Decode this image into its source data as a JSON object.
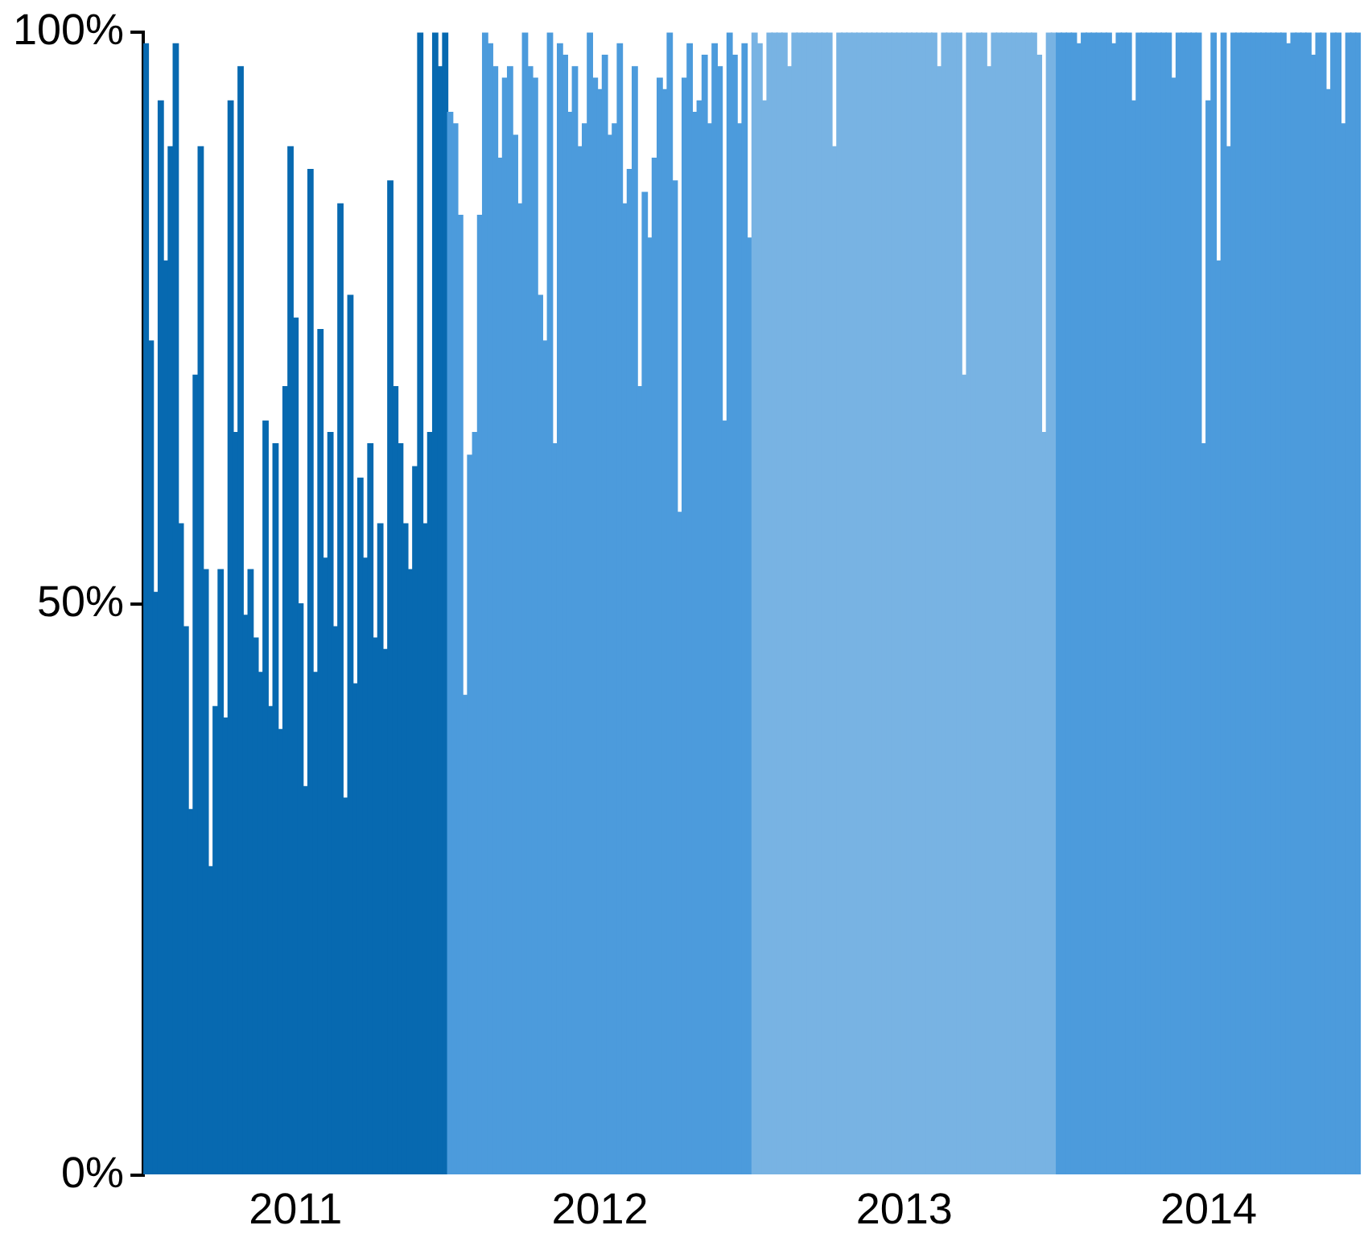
{
  "chart_data": {
    "type": "bar",
    "categories": [
      null,
      null,
      null,
      null,
      null,
      null,
      null,
      null,
      null,
      null,
      null,
      null,
      null,
      null,
      null,
      null,
      null,
      null,
      null,
      null,
      null,
      null,
      null,
      null,
      null,
      null,
      null,
      null,
      null,
      null,
      "2011",
      null,
      null,
      null,
      null,
      null,
      null,
      null,
      null,
      null,
      null,
      null,
      null,
      null,
      null,
      null,
      null,
      null,
      null,
      null,
      null,
      null,
      null,
      null,
      null,
      null,
      null,
      null,
      null,
      null,
      null,
      null,
      null,
      null,
      null,
      null,
      null,
      null,
      null,
      null,
      null,
      null,
      null,
      null,
      null,
      null,
      null,
      null,
      null,
      null,
      null,
      null,
      null,
      null,
      null,
      null,
      null,
      null,
      null,
      null,
      null,
      "2012",
      null,
      null,
      null,
      null,
      null,
      null,
      null,
      null,
      null,
      null,
      null,
      null,
      null,
      null,
      null,
      null,
      null,
      null,
      null,
      null,
      null,
      null,
      null,
      null,
      null,
      null,
      null,
      null,
      null,
      null,
      null,
      null,
      null,
      null,
      null,
      null,
      null,
      null,
      null,
      null,
      null,
      null,
      null,
      null,
      null,
      null,
      null,
      null,
      null,
      null,
      null,
      null,
      null,
      null,
      null,
      null,
      null,
      null,
      null,
      null,
      "2013",
      null,
      null,
      null,
      null,
      null,
      null,
      null,
      null,
      null,
      null,
      null,
      null,
      null,
      null,
      null,
      null,
      null,
      null,
      null,
      null,
      null,
      null,
      null,
      null,
      null,
      null,
      null,
      null,
      null,
      null,
      null,
      null,
      null,
      null,
      null,
      null,
      null,
      null,
      null,
      null,
      null,
      null,
      null,
      null,
      null,
      null,
      null,
      null,
      null,
      null,
      null,
      null,
      null,
      null,
      null,
      null,
      null,
      null,
      null,
      null,
      "2014",
      null,
      null,
      null,
      null,
      null,
      null,
      null,
      null,
      null,
      null,
      null,
      null,
      null,
      null,
      null,
      null,
      null,
      null,
      null,
      null,
      null,
      null,
      null,
      null,
      null,
      null,
      null,
      null,
      null,
      null
    ],
    "values": [
      99,
      73,
      51,
      94,
      80,
      90,
      99,
      57,
      48,
      32,
      70,
      90,
      53,
      27,
      41,
      53,
      40,
      94,
      65,
      97,
      49,
      53,
      47,
      44,
      66,
      41,
      64,
      39,
      69,
      90,
      75,
      50,
      34,
      88,
      44,
      74,
      54,
      65,
      48,
      85,
      33,
      77,
      43,
      61,
      54,
      64,
      47,
      57,
      46,
      87,
      69,
      64,
      57,
      53,
      62,
      100,
      57,
      65,
      100,
      97,
      100,
      93,
      92,
      84,
      42,
      63,
      65,
      84,
      100,
      99,
      97,
      89,
      96,
      97,
      91,
      85,
      100,
      97,
      96,
      77,
      73,
      100,
      64,
      99,
      98,
      93,
      97,
      90,
      92,
      100,
      96,
      95,
      98,
      91,
      92,
      99,
      85,
      88,
      97,
      69,
      86,
      82,
      89,
      96,
      95,
      100,
      87,
      58,
      96,
      99,
      93,
      94,
      98,
      92,
      99,
      97,
      66,
      100,
      98,
      92,
      99,
      82,
      100,
      99,
      94,
      100,
      100,
      100,
      100,
      97,
      100,
      100,
      100,
      100,
      100,
      100,
      100,
      100,
      90,
      100,
      100,
      100,
      100,
      100,
      100,
      100,
      100,
      100,
      100,
      100,
      100,
      100,
      100,
      100,
      100,
      100,
      100,
      100,
      100,
      97,
      100,
      100,
      100,
      100,
      70,
      100,
      100,
      100,
      100,
      97,
      100,
      100,
      100,
      100,
      100,
      100,
      100,
      100,
      100,
      98,
      65,
      100,
      100,
      100,
      100,
      100,
      100,
      99,
      100,
      100,
      100,
      100,
      100,
      100,
      99,
      100,
      100,
      100,
      94,
      100,
      100,
      100,
      100,
      100,
      100,
      100,
      96,
      100,
      100,
      100,
      100,
      100,
      64,
      94,
      100,
      80,
      100,
      90,
      100,
      100,
      100,
      100,
      100,
      100,
      100,
      100,
      100,
      100,
      100,
      99,
      100,
      100,
      100,
      100,
      98,
      100,
      100,
      95,
      100,
      100,
      92,
      100,
      100,
      100
    ],
    "colors": [
      "#0769b0",
      "#0769b0",
      "#0769b0",
      "#0769b0",
      "#0769b0",
      "#0769b0",
      "#0769b0",
      "#0769b0",
      "#0769b0",
      "#0769b0",
      "#0769b0",
      "#0769b0",
      "#0769b0",
      "#0769b0",
      "#0769b0",
      "#0769b0",
      "#0769b0",
      "#0769b0",
      "#0769b0",
      "#0769b0",
      "#0769b0",
      "#0769b0",
      "#0769b0",
      "#0769b0",
      "#0769b0",
      "#0769b0",
      "#0769b0",
      "#0769b0",
      "#0769b0",
      "#0769b0",
      "#0769b0",
      "#0769b0",
      "#0769b0",
      "#0769b0",
      "#0769b0",
      "#0769b0",
      "#0769b0",
      "#0769b0",
      "#0769b0",
      "#0769b0",
      "#0769b0",
      "#0769b0",
      "#0769b0",
      "#0769b0",
      "#0769b0",
      "#0769b0",
      "#0769b0",
      "#0769b0",
      "#0769b0",
      "#0769b0",
      "#0769b0",
      "#0769b0",
      "#0769b0",
      "#0769b0",
      "#0769b0",
      "#0769b0",
      "#0769b0",
      "#0769b0",
      "#0769b0",
      "#0769b0",
      "#0769b0",
      "#4c9bdc",
      "#4c9bdc",
      "#4c9bdc",
      "#4c9bdc",
      "#4c9bdc",
      "#4c9bdc",
      "#4c9bdc",
      "#4c9bdc",
      "#4c9bdc",
      "#4c9bdc",
      "#4c9bdc",
      "#4c9bdc",
      "#4c9bdc",
      "#4c9bdc",
      "#4c9bdc",
      "#4c9bdc",
      "#4c9bdc",
      "#4c9bdc",
      "#4c9bdc",
      "#4c9bdc",
      "#4c9bdc",
      "#4c9bdc",
      "#4c9bdc",
      "#4c9bdc",
      "#4c9bdc",
      "#4c9bdc",
      "#4c9bdc",
      "#4c9bdc",
      "#4c9bdc",
      "#4c9bdc",
      "#4c9bdc",
      "#4c9bdc",
      "#4c9bdc",
      "#4c9bdc",
      "#4c9bdc",
      "#4c9bdc",
      "#4c9bdc",
      "#4c9bdc",
      "#4c9bdc",
      "#4c9bdc",
      "#4c9bdc",
      "#4c9bdc",
      "#4c9bdc",
      "#4c9bdc",
      "#4c9bdc",
      "#4c9bdc",
      "#4c9bdc",
      "#4c9bdc",
      "#4c9bdc",
      "#4c9bdc",
      "#4c9bdc",
      "#4c9bdc",
      "#4c9bdc",
      "#4c9bdc",
      "#4c9bdc",
      "#4c9bdc",
      "#4c9bdc",
      "#4c9bdc",
      "#4c9bdc",
      "#4c9bdc",
      "#4c9bdc",
      "#78b3e3",
      "#78b3e3",
      "#78b3e3",
      "#78b3e3",
      "#78b3e3",
      "#78b3e3",
      "#78b3e3",
      "#78b3e3",
      "#78b3e3",
      "#78b3e3",
      "#78b3e3",
      "#78b3e3",
      "#78b3e3",
      "#78b3e3",
      "#78b3e3",
      "#78b3e3",
      "#78b3e3",
      "#78b3e3",
      "#78b3e3",
      "#78b3e3",
      "#78b3e3",
      "#78b3e3",
      "#78b3e3",
      "#78b3e3",
      "#78b3e3",
      "#78b3e3",
      "#78b3e3",
      "#78b3e3",
      "#78b3e3",
      "#78b3e3",
      "#78b3e3",
      "#78b3e3",
      "#78b3e3",
      "#78b3e3",
      "#78b3e3",
      "#78b3e3",
      "#78b3e3",
      "#78b3e3",
      "#78b3e3",
      "#78b3e3",
      "#78b3e3",
      "#78b3e3",
      "#78b3e3",
      "#78b3e3",
      "#78b3e3",
      "#78b3e3",
      "#78b3e3",
      "#78b3e3",
      "#78b3e3",
      "#78b3e3",
      "#78b3e3",
      "#78b3e3",
      "#78b3e3",
      "#78b3e3",
      "#78b3e3",
      "#78b3e3",
      "#78b3e3",
      "#78b3e3",
      "#78b3e3",
      "#78b3e3",
      "#78b3e3",
      "#4c9bdc",
      "#4c9bdc",
      "#4c9bdc",
      "#4c9bdc",
      "#4c9bdc",
      "#4c9bdc",
      "#4c9bdc",
      "#4c9bdc",
      "#4c9bdc",
      "#4c9bdc",
      "#4c9bdc",
      "#4c9bdc",
      "#4c9bdc",
      "#4c9bdc",
      "#4c9bdc",
      "#4c9bdc",
      "#4c9bdc",
      "#4c9bdc",
      "#4c9bdc",
      "#4c9bdc",
      "#4c9bdc",
      "#4c9bdc",
      "#4c9bdc",
      "#4c9bdc",
      "#4c9bdc",
      "#4c9bdc",
      "#4c9bdc",
      "#4c9bdc",
      "#4c9bdc",
      "#4c9bdc",
      "#4c9bdc",
      "#4c9bdc",
      "#4c9bdc",
      "#4c9bdc",
      "#4c9bdc",
      "#4c9bdc",
      "#4c9bdc",
      "#4c9bdc",
      "#4c9bdc",
      "#4c9bdc",
      "#4c9bdc",
      "#4c9bdc",
      "#4c9bdc",
      "#4c9bdc",
      "#4c9bdc",
      "#4c9bdc",
      "#4c9bdc",
      "#4c9bdc",
      "#4c9bdc",
      "#4c9bdc",
      "#4c9bdc",
      "#4c9bdc",
      "#4c9bdc",
      "#4c9bdc",
      "#4c9bdc",
      "#4c9bdc",
      "#4c9bdc",
      "#4c9bdc",
      "#4c9bdc",
      "#4c9bdc",
      "#4c9bdc"
    ],
    "ylim": [
      0,
      100
    ],
    "yticks": [
      {
        "value": 0,
        "label": "0%"
      },
      {
        "value": 50,
        "label": "50%"
      },
      {
        "value": 100,
        "label": "100%"
      }
    ],
    "grid": false,
    "legend": false
  }
}
